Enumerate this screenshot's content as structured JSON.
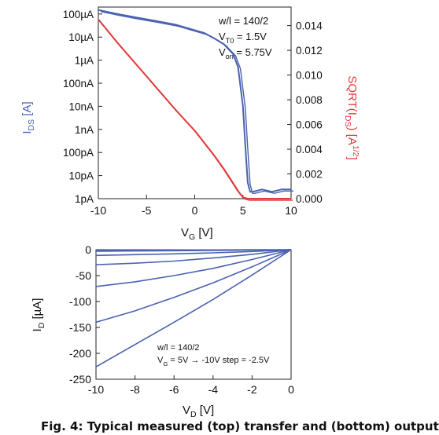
{
  "chart_data": [
    {
      "type": "line",
      "panel": "top",
      "xlabel": "V",
      "xlabel_sub": "G",
      "xlabel_unit": "[V]",
      "x_ticks": [
        "-10",
        "-5",
        "0",
        "5",
        "10"
      ],
      "xlim": [
        -10,
        10
      ],
      "ylabel_left": "I",
      "ylabel_left_sub": "DS",
      "ylabel_left_unit": "[A]",
      "ylabel_left_color": "#4a62b0",
      "y_left_scale": "log",
      "y_left_ticks": [
        "100µA",
        "10µA",
        "1µA",
        "100nA",
        "10nA",
        "1nA",
        "100pA",
        "10pA",
        "1pA"
      ],
      "ylim_left": [
        1e-12,
        0.0002
      ],
      "ylabel_right": "SQRT(I",
      "ylabel_right_sub": "DS",
      "ylabel_right_tail": ")  [A",
      "ylabel_right_sup": "1/2",
      "ylabel_right_end": "]",
      "ylabel_right_color": "#e23b3b",
      "y_right_ticks": [
        "0.014",
        "0.012",
        "0.010",
        "0.008",
        "0.006",
        "0.004",
        "0.002",
        "0.000"
      ],
      "ylim_right": [
        0,
        0.0155
      ],
      "annotation_lines": [
        {
          "main": "w/l = 140/2",
          "sub": "",
          "rest": ""
        },
        {
          "main": "V",
          "sub": "T0",
          "rest": " = 1.5V"
        },
        {
          "main": "V",
          "sub": "on",
          "rest": " = 5.75V"
        }
      ],
      "series": [
        {
          "axis": "left",
          "color": "#4a62b0",
          "x": [
            -10,
            -8,
            -6,
            -4,
            -2,
            0,
            1,
            2,
            3,
            4,
            4.5,
            5,
            5.25,
            5.5,
            5.75,
            6,
            7,
            8,
            9,
            10
          ],
          "y": [
            0.00015,
            0.0001,
            7e-05,
            5e-05,
            3.5e-05,
            2e-05,
            1.5e-05,
            9e-06,
            5e-06,
            1.8e-06,
            5e-07,
            1e-08,
            2e-10,
            5e-12,
            2e-12,
            2e-12,
            2.5e-12,
            2e-12,
            2.5e-12,
            2.5e-12
          ]
        },
        {
          "axis": "right",
          "color": "#e23b3b",
          "x": [
            -10,
            -8,
            -6,
            -4,
            -2,
            0,
            2,
            3,
            4,
            4.5,
            5,
            5.5,
            10
          ],
          "y": [
            0.0145,
            0.0126,
            0.0108,
            0.009,
            0.0072,
            0.0055,
            0.0035,
            0.0024,
            0.0012,
            0.0006,
            0.0001,
            0.0,
            0.0
          ]
        }
      ]
    },
    {
      "type": "line",
      "panel": "bottom",
      "xlabel": "V",
      "xlabel_sub": "D",
      "xlabel_unit": "[V]",
      "x_ticks": [
        "-10",
        "-8",
        "-6",
        "-4",
        "-2",
        "0"
      ],
      "xlim": [
        -10,
        0
      ],
      "ylabel": "I",
      "ylabel_sub": "D",
      "ylabel_unit": "[µA]",
      "y_ticks": [
        "0",
        "-50",
        "-100",
        "-150",
        "-200",
        "-250"
      ],
      "ylim": [
        -250,
        0
      ],
      "annotation_lines": [
        {
          "main": "w/l = 140/2",
          "sub": "",
          "rest": ""
        },
        {
          "main": "V",
          "sub": "G",
          "rest": " = 5V → -10V step = -2.5V"
        }
      ],
      "color": "#4a62b0",
      "x": [
        -10,
        -8,
        -6,
        -4,
        -2,
        0
      ],
      "series": [
        {
          "values": [
            -1,
            -0.8,
            -0.6,
            -0.4,
            -0.2,
            0
          ]
        },
        {
          "values": [
            -3,
            -2.5,
            -2,
            -1.5,
            -0.8,
            0
          ]
        },
        {
          "values": [
            -11,
            -9.5,
            -8,
            -6,
            -3.5,
            0
          ]
        },
        {
          "values": [
            -29,
            -26,
            -22,
            -16,
            -9,
            0
          ]
        },
        {
          "values": [
            -71,
            -62,
            -50,
            -36,
            -19,
            0
          ]
        },
        {
          "values": [
            -140,
            -118,
            -92,
            -64,
            -33,
            0
          ]
        },
        {
          "values": [
            -226,
            -183,
            -140,
            -96,
            -49,
            0
          ]
        }
      ]
    }
  ],
  "caption": "Fig. 4: Typical measured (top) transfer and (bottom) output"
}
